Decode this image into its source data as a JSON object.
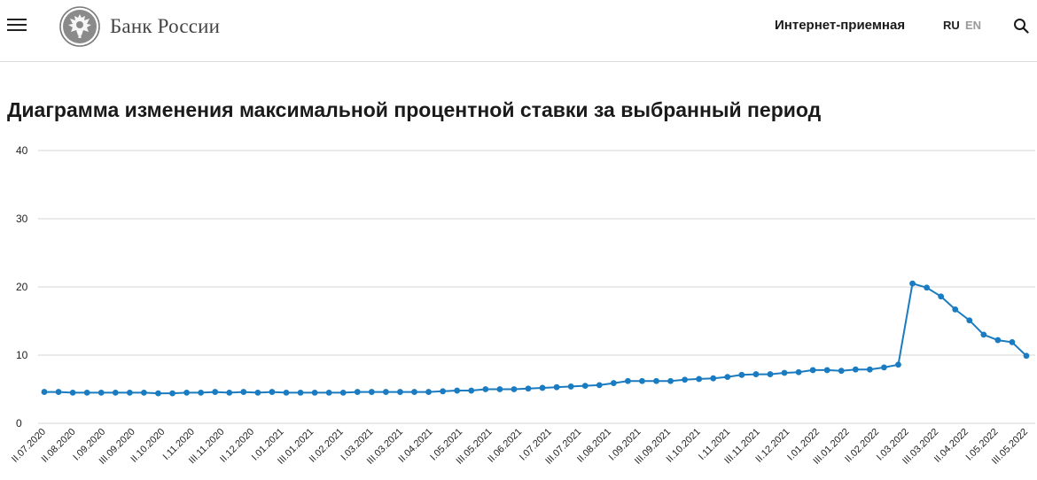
{
  "header": {
    "brand": "Банк России",
    "reception": "Интернет-приемная",
    "lang_ru": "RU",
    "lang_en": "EN"
  },
  "icons": {
    "menu": "hamburger-menu-icon",
    "logo": "double-eagle-emblem",
    "search": "search-icon"
  },
  "colors": {
    "line": "#1a7bc0",
    "grid": "#d6d6d6",
    "text": "#1a1a1a",
    "lang_inactive": "#9a9a9a"
  },
  "page_title": "Диаграмма изменения максимальной процентной ставки за выбранный период",
  "chart_data": {
    "type": "line",
    "title": "Диаграмма изменения максимальной процентной ставки за выбранный период",
    "xlabel": "",
    "ylabel": "",
    "ylim": [
      0,
      40
    ],
    "yticks": [
      0,
      10,
      20,
      30,
      40
    ],
    "grid": true,
    "legend": "none",
    "x_tick_labels": [
      "II.07.2020",
      "II.08.2020",
      "I.09.2020",
      "III.09.2020",
      "II.10.2020",
      "I.11.2020",
      "III.11.2020",
      "II.12.2020",
      "I.01.2021",
      "III.01.2021",
      "II.02.2021",
      "I.03.2021",
      "III.03.2021",
      "II.04.2021",
      "I.05.2021",
      "III.05.2021",
      "II.06.2021",
      "I.07.2021",
      "III.07.2021",
      "II.08.2021",
      "I.09.2021",
      "III.09.2021",
      "II.10.2021",
      "I.11.2021",
      "III.11.2021",
      "II.12.2021",
      "I.01.2022",
      "III.01.2022",
      "II.02.2022",
      "I.03.2022",
      "III.03.2022",
      "II.04.2022",
      "I.05.2022",
      "III.05.2022"
    ],
    "series": [
      {
        "values": [
          4.6,
          4.6,
          4.5,
          4.5,
          4.5,
          4.5,
          4.5,
          4.5,
          4.4,
          4.4,
          4.5,
          4.5,
          4.6,
          4.5,
          4.6,
          4.5,
          4.6,
          4.5,
          4.5,
          4.5,
          4.5,
          4.5,
          4.6,
          4.6,
          4.6,
          4.6,
          4.6,
          4.6,
          4.7,
          4.8,
          4.8,
          5.0,
          5.0,
          5.0,
          5.1,
          5.2,
          5.3,
          5.4,
          5.5,
          5.6,
          5.9,
          6.2,
          6.2,
          6.2,
          6.2,
          6.4,
          6.5,
          6.6,
          6.8,
          7.1,
          7.2,
          7.2,
          7.4,
          7.5,
          7.8,
          7.8,
          7.7,
          7.9,
          7.9,
          8.2,
          8.6,
          20.5,
          19.9,
          18.6,
          16.7,
          15.1,
          13.0,
          12.2,
          11.9,
          9.9
        ]
      }
    ]
  }
}
